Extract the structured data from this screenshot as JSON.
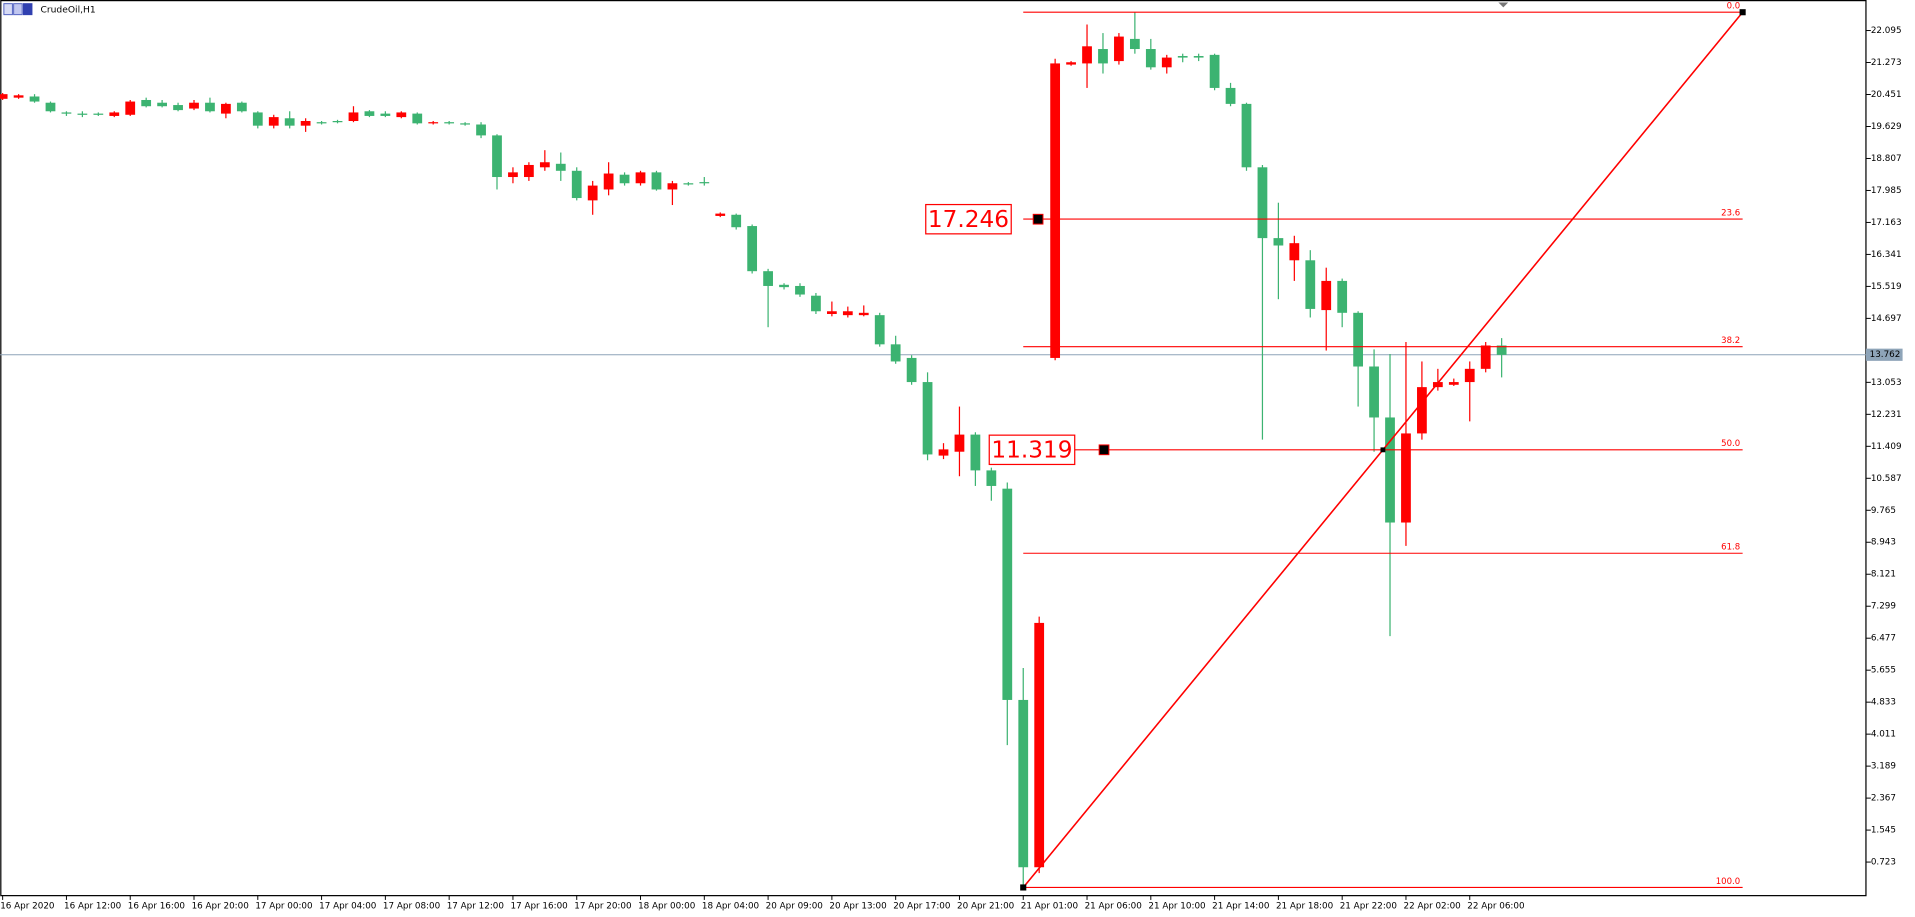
{
  "chart_data": {
    "type": "candlestick",
    "title": "CrudeOil,H1",
    "categories": [
      "16 Apr 2020",
      null,
      null,
      null,
      "16 Apr 12:00",
      null,
      null,
      null,
      "16 Apr 16:00",
      null,
      null,
      null,
      "16 Apr 20:00",
      null,
      null,
      null,
      "17 Apr 00:00",
      null,
      null,
      null,
      "17 Apr 04:00",
      null,
      null,
      null,
      "17 Apr 08:00",
      null,
      null,
      null,
      "17 Apr 12:00",
      null,
      null,
      null,
      "17 Apr 16:00",
      null,
      null,
      null,
      "17 Apr 20:00",
      null,
      null,
      null,
      "18 Apr 00:00",
      null,
      null,
      null,
      "18 Apr 04:00",
      null,
      null,
      null,
      "20 Apr 09:00",
      null,
      null,
      null,
      "20 Apr 13:00",
      null,
      null,
      null,
      "20 Apr 17:00",
      null,
      null,
      null,
      "20 Apr 21:00",
      null,
      null,
      null,
      "21 Apr 01:00",
      null,
      null,
      null,
      "21 Apr 06:00",
      null,
      null,
      null,
      "21 Apr 10:00",
      null,
      null,
      null,
      "21 Apr 14:00",
      null,
      null,
      null,
      "21 Apr 18:00",
      null,
      null,
      null,
      "21 Apr 22:00",
      null,
      null,
      null,
      "22 Apr 02:00",
      null,
      null,
      null,
      "22 Apr 06:00",
      null,
      null
    ],
    "open": [
      20.34,
      20.37,
      20.4,
      20.24,
      19.99,
      19.96,
      19.96,
      19.9,
      19.93,
      20.31,
      20.24,
      20.18,
      20.09,
      20.24,
      19.96,
      20.24,
      19.99,
      19.65,
      19.84,
      19.65,
      19.74,
      19.77,
      19.77,
      20.02,
      19.96,
      19.87,
      19.96,
      19.71,
      19.74,
      19.71,
      19.68,
      19.4,
      18.33,
      18.33,
      18.58,
      18.67,
      18.49,
      17.73,
      18.01,
      18.39,
      18.17,
      18.45,
      18.01,
      18.17,
      18.2,
      17.33,
      17.36,
      17.07,
      15.91,
      15.56,
      15.53,
      15.28,
      14.81,
      14.78,
      14.78,
      14.78,
      14.03,
      13.68,
      13.06,
      11.17,
      11.27,
      11.71,
      10.79,
      10.32,
      4.89,
      0.59,
      13.68,
      21.22,
      21.25,
      21.62,
      21.31,
      21.88,
      21.62,
      21.15,
      21.44,
      21.44,
      21.47,
      20.62,
      20.21,
      18.58,
      16.76,
      16.19,
      16.19,
      14.91,
      15.66,
      14.84,
      13.46,
      12.15,
      9.45,
      11.74,
      12.93,
      12.99,
      13.06,
      13.4,
      14.0
    ],
    "high": [
      20.49,
      20.46,
      20.46,
      20.27,
      20.02,
      20.02,
      19.99,
      20.02,
      20.31,
      20.37,
      20.31,
      20.24,
      20.31,
      20.37,
      20.24,
      20.27,
      20.02,
      19.93,
      20.02,
      19.84,
      19.77,
      19.8,
      20.15,
      20.05,
      20.02,
      20.02,
      19.99,
      19.77,
      19.77,
      19.74,
      19.74,
      19.43,
      18.58,
      18.71,
      19.02,
      18.96,
      18.58,
      18.23,
      18.71,
      18.45,
      18.49,
      18.49,
      18.23,
      18.2,
      18.33,
      17.42,
      17.39,
      17.11,
      15.97,
      15.6,
      15.6,
      15.35,
      15.13,
      15.0,
      15.03,
      14.84,
      14.25,
      13.75,
      13.31,
      11.49,
      12.43,
      11.77,
      10.86,
      10.48,
      5.71,
      7.03,
      21.37,
      21.31,
      22.25,
      22.03,
      22.03,
      22.57,
      21.88,
      21.47,
      21.5,
      21.5,
      21.5,
      20.75,
      20.24,
      18.64,
      17.67,
      16.82,
      16.45,
      16.0,
      15.72,
      14.88,
      13.9,
      13.78,
      14.09,
      13.59,
      13.4,
      13.15,
      13.59,
      14.09,
      14.19
    ],
    "low": [
      20.31,
      20.34,
      20.24,
      19.99,
      19.9,
      19.87,
      19.9,
      19.87,
      19.9,
      20.12,
      20.12,
      20.02,
      20.05,
      19.99,
      19.84,
      19.99,
      19.58,
      19.58,
      19.58,
      19.49,
      19.68,
      19.71,
      19.74,
      19.87,
      19.87,
      19.84,
      19.68,
      19.68,
      19.68,
      19.65,
      19.33,
      18.01,
      18.17,
      18.23,
      18.49,
      18.23,
      17.73,
      17.36,
      17.86,
      18.11,
      18.11,
      17.98,
      17.61,
      18.11,
      18.11,
      17.3,
      16.98,
      15.85,
      14.47,
      15.44,
      15.25,
      14.81,
      14.75,
      14.72,
      14.75,
      13.97,
      13.53,
      12.99,
      11.05,
      11.08,
      10.64,
      10.39,
      10.01,
      3.73,
      0.07,
      0.44,
      13.62,
      21.19,
      20.62,
      20.99,
      21.22,
      21.5,
      21.09,
      20.99,
      21.28,
      21.31,
      20.56,
      20.15,
      18.49,
      11.58,
      15.19,
      15.66,
      14.72,
      13.87,
      14.47,
      12.43,
      11.27,
      6.53,
      8.85,
      11.58,
      12.84,
      12.96,
      12.05,
      13.31,
      13.18
    ],
    "close": [
      20.46,
      20.43,
      20.27,
      20.02,
      19.96,
      19.93,
      19.93,
      19.99,
      20.27,
      20.15,
      20.15,
      20.05,
      20.24,
      20.02,
      20.21,
      20.02,
      19.65,
      19.87,
      19.65,
      19.77,
      19.71,
      19.74,
      19.99,
      19.9,
      19.9,
      19.99,
      19.71,
      19.74,
      19.71,
      19.68,
      19.4,
      18.33,
      18.45,
      18.64,
      18.71,
      18.49,
      17.79,
      18.11,
      18.42,
      18.17,
      18.45,
      18.01,
      18.17,
      18.14,
      18.17,
      17.39,
      17.04,
      15.91,
      15.53,
      15.5,
      15.31,
      14.88,
      14.88,
      14.88,
      14.84,
      14.03,
      13.59,
      13.06,
      11.2,
      11.33,
      11.71,
      10.79,
      10.39,
      4.89,
      0.59,
      6.87,
      21.25,
      21.28,
      21.69,
      21.25,
      21.94,
      21.62,
      21.15,
      21.4,
      21.4,
      21.4,
      20.62,
      20.21,
      18.58,
      16.76,
      16.57,
      16.63,
      14.94,
      15.66,
      14.84,
      13.46,
      12.15,
      9.45,
      11.74,
      12.93,
      13.06,
      13.06,
      13.4,
      14.0,
      13.76
    ],
    "up_color": "#ff0000",
    "down_color": "#3cb371",
    "ylim": [
      -0.124,
      22.88
    ],
    "yticks": [
      22.095,
      21.273,
      20.451,
      19.629,
      18.807,
      17.985,
      17.163,
      16.341,
      15.519,
      14.697,
      13.053,
      12.231,
      11.409,
      10.587,
      9.765,
      8.943,
      8.121,
      7.299,
      6.477,
      5.655,
      4.833,
      4.011,
      3.189,
      2.367,
      1.545,
      0.723
    ],
    "current_price": 13.762,
    "current_price_color": "#8ea4b8",
    "fibonacci": {
      "levels": [
        "0.0",
        "23.6",
        "38.2",
        "50.0",
        "61.8",
        "100.0"
      ],
      "prices": [
        22.566,
        17.25,
        13.97,
        11.32,
        8.66,
        0.07
      ],
      "color": "#ff0000"
    },
    "price_labels": [
      17.246,
      11.319
    ]
  }
}
